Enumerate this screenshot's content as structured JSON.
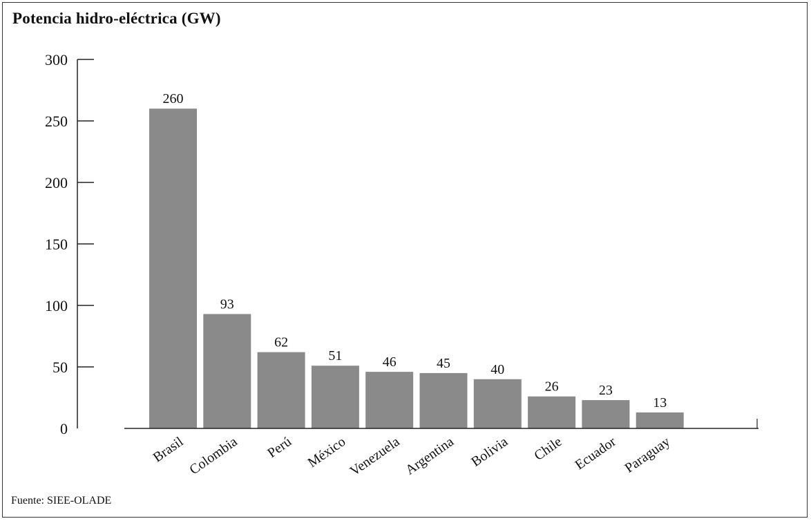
{
  "title": "Potencia hidro-eléctrica (GW)",
  "source": "Fuente: SIEE-OLADE",
  "colors": {
    "bar": "#8a8a8a",
    "axis": "#222222"
  },
  "chart_data": {
    "type": "bar",
    "title": "Potencia hidro-eléctrica (GW)",
    "xlabel": "",
    "ylabel": "",
    "categories": [
      "Brasil",
      "Colombia",
      "Perú",
      "México",
      "Venezuela",
      "Argentina",
      "Bolivia",
      "Chile",
      "Ecuador",
      "Paraguay"
    ],
    "values": [
      260,
      93,
      62,
      51,
      46,
      45,
      40,
      26,
      23,
      13
    ],
    "ylim": [
      0,
      300
    ],
    "yticks": [
      0,
      50,
      100,
      150,
      200,
      250,
      300
    ],
    "grid": false,
    "legend": "none",
    "data_labels": true
  }
}
